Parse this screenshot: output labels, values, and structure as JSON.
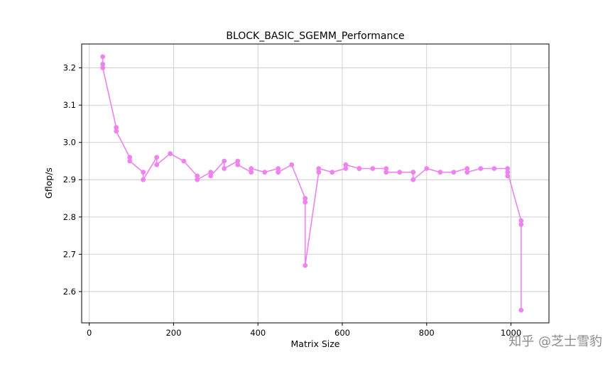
{
  "chart_data": {
    "type": "line",
    "title": "BLOCK_BASIC_SGEMM_Performance",
    "xlabel": "Matrix Size",
    "ylabel": "Gflop/s",
    "xlim": [
      -18,
      1090
    ],
    "ylim": [
      2.516,
      3.264
    ],
    "xticks": [
      0,
      200,
      400,
      600,
      800,
      1000
    ],
    "yticks": [
      2.6,
      2.7,
      2.8,
      2.9,
      3.0,
      3.1,
      3.2
    ],
    "grid": true,
    "legend_position": "none",
    "line_color": "#ee82ee",
    "marker": "circle",
    "series": [
      {
        "name": "BLOCK_BASIC_SGEMM",
        "points": [
          [
            32,
            3.23
          ],
          [
            32,
            3.21
          ],
          [
            32,
            3.2
          ],
          [
            64,
            3.04
          ],
          [
            64,
            3.03
          ],
          [
            96,
            2.96
          ],
          [
            96,
            2.95
          ],
          [
            128,
            2.92
          ],
          [
            128,
            2.9
          ],
          [
            160,
            2.96
          ],
          [
            160,
            2.94
          ],
          [
            192,
            2.97
          ],
          [
            192,
            2.97
          ],
          [
            224,
            2.95
          ],
          [
            256,
            2.91
          ],
          [
            256,
            2.9
          ],
          [
            288,
            2.92
          ],
          [
            288,
            2.91
          ],
          [
            320,
            2.95
          ],
          [
            320,
            2.93
          ],
          [
            352,
            2.95
          ],
          [
            352,
            2.94
          ],
          [
            384,
            2.92
          ],
          [
            384,
            2.93
          ],
          [
            416,
            2.92
          ],
          [
            448,
            2.93
          ],
          [
            448,
            2.92
          ],
          [
            480,
            2.94
          ],
          [
            512,
            2.85
          ],
          [
            512,
            2.84
          ],
          [
            512,
            2.67
          ],
          [
            544,
            2.92
          ],
          [
            544,
            2.93
          ],
          [
            576,
            2.92
          ],
          [
            608,
            2.93
          ],
          [
            608,
            2.94
          ],
          [
            640,
            2.93
          ],
          [
            640,
            2.93
          ],
          [
            672,
            2.93
          ],
          [
            704,
            2.93
          ],
          [
            704,
            2.92
          ],
          [
            736,
            2.92
          ],
          [
            768,
            2.92
          ],
          [
            768,
            2.9
          ],
          [
            800,
            2.93
          ],
          [
            832,
            2.92
          ],
          [
            864,
            2.92
          ],
          [
            896,
            2.93
          ],
          [
            896,
            2.92
          ],
          [
            928,
            2.93
          ],
          [
            960,
            2.93
          ],
          [
            992,
            2.93
          ],
          [
            992,
            2.91
          ],
          [
            992,
            2.92
          ],
          [
            1024,
            2.79
          ],
          [
            1024,
            2.78
          ],
          [
            1024,
            2.55
          ]
        ]
      }
    ]
  },
  "watermark": {
    "text": "知乎 @芝士雪豹",
    "color": "#8c8c8c"
  }
}
